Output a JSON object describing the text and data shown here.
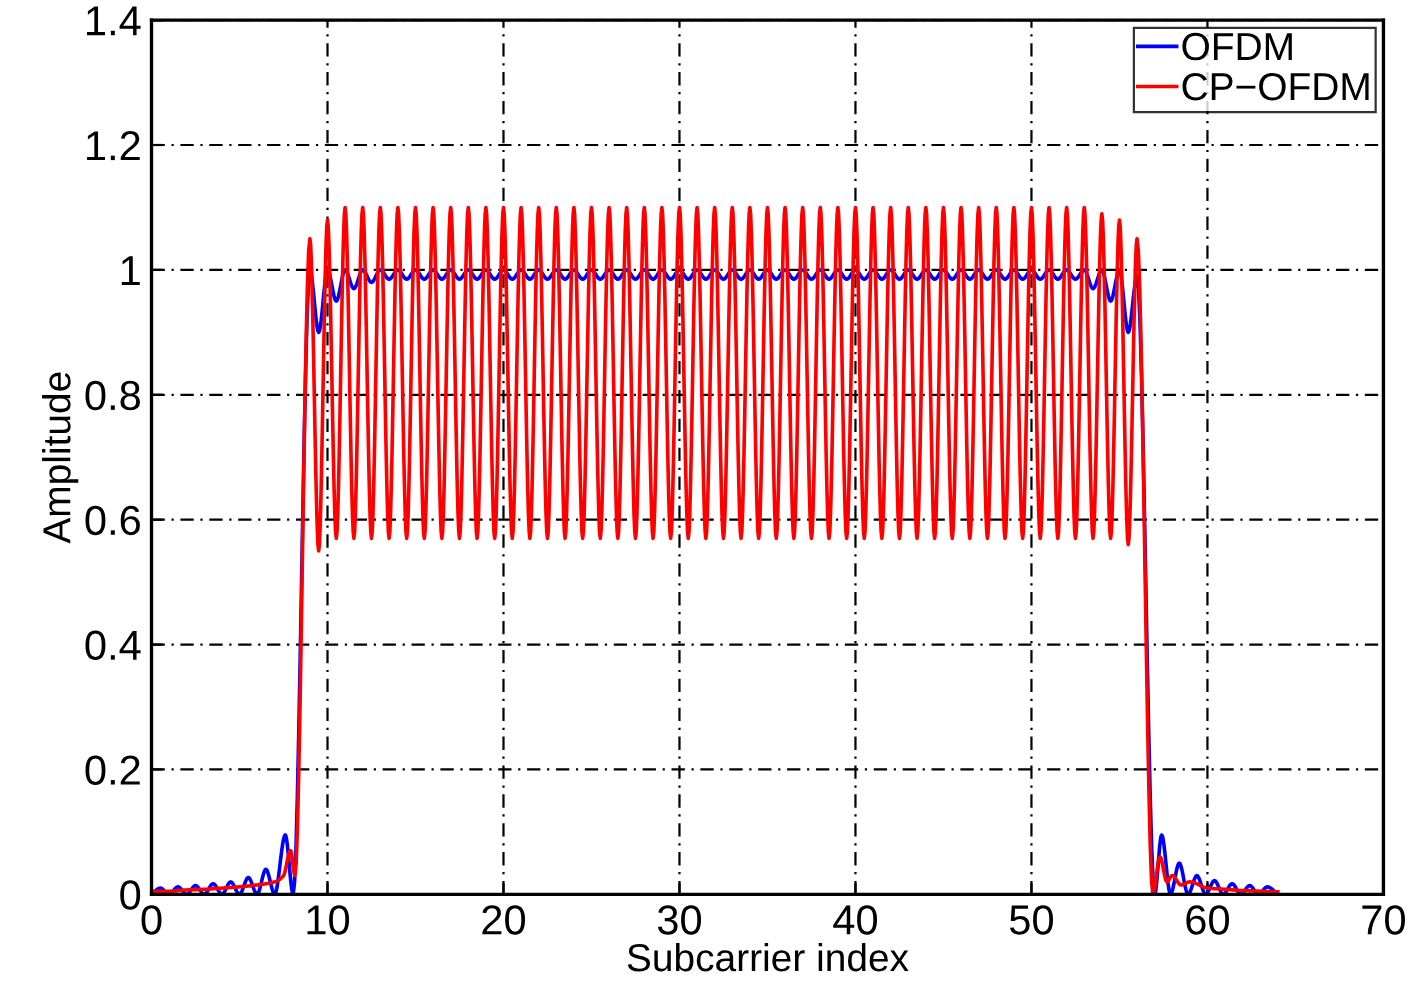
{
  "chart_data": {
    "type": "line",
    "xlabel": "Subcarrier index",
    "ylabel": "Amplitude",
    "xlim": [
      0,
      70
    ],
    "xticks": [
      0,
      10,
      20,
      30,
      40,
      50,
      60,
      70
    ],
    "ylim": [
      0,
      1.4
    ],
    "yticks": [
      0,
      0.2,
      0.4,
      0.6,
      0.8,
      1,
      1.2,
      1.4
    ],
    "grid": true,
    "legend": "top right",
    "line_style": "solid",
    "marker": "none",
    "series": [
      {
        "name": "OFDM",
        "color": "#0000ff",
        "x": [
          0,
          0.5,
          1,
          1.5,
          2,
          2.5,
          3,
          3.5,
          4,
          4.5,
          5,
          5.5,
          6,
          6.5,
          7,
          7.6,
          8.05,
          9,
          9.5,
          10,
          10.5,
          11,
          11.5,
          12,
          12.5,
          13,
          13.5,
          14,
          14.5,
          15,
          15.5,
          16,
          16.5,
          17,
          17.5,
          18,
          18.5,
          19,
          19.5,
          20,
          20.5,
          21,
          21.5,
          22,
          22.5,
          23,
          23.5,
          24,
          24.5,
          25,
          25.5,
          26,
          26.5,
          27,
          27.5,
          28,
          28.5,
          29,
          29.5,
          30,
          30.5,
          31,
          31.5,
          32,
          32.5,
          33,
          33.5,
          34,
          34.5,
          35,
          35.5,
          36,
          36.5,
          37,
          37.5,
          38,
          38.5,
          39,
          39.5,
          40,
          40.5,
          41,
          41.5,
          42,
          42.5,
          43,
          43.5,
          44,
          44.5,
          45,
          45.5,
          46,
          46.5,
          47,
          47.5,
          48,
          48.5,
          49,
          49.5,
          50,
          50.5,
          51,
          51.5,
          52,
          52.5,
          53,
          53.5,
          54,
          54.5,
          55,
          55.5,
          56,
          57,
          57.4,
          57.9,
          58.4,
          58.9,
          59.4,
          59.9,
          60.4,
          60.9,
          61.4,
          61.9,
          62.4,
          62.9,
          63.4,
          64
        ],
        "values": [
          0,
          0.01,
          0,
          0.012,
          0,
          0.014,
          0,
          0.017,
          0,
          0.02,
          0,
          0.027,
          0,
          0.04,
          0,
          0.095,
          0,
          1,
          0.9,
          1,
          0.95,
          1,
          0.97,
          1,
          0.98,
          1,
          0.985,
          1,
          0.985,
          1,
          0.985,
          1,
          0.985,
          1,
          0.985,
          1,
          0.985,
          1,
          0.985,
          1,
          0.985,
          1,
          0.985,
          1,
          0.985,
          1,
          0.985,
          1,
          0.985,
          1,
          0.985,
          1,
          0.985,
          1,
          0.985,
          1,
          0.985,
          1,
          0.985,
          1,
          0.985,
          1,
          0.985,
          1,
          0.985,
          1,
          0.985,
          1,
          0.985,
          1,
          0.985,
          1,
          0.985,
          1,
          0.985,
          1,
          0.985,
          1,
          0.985,
          1,
          0.985,
          1,
          0.985,
          1,
          0.985,
          1,
          0.985,
          1,
          0.985,
          1,
          0.985,
          1,
          0.985,
          1,
          0.985,
          1,
          0.985,
          1,
          0.985,
          1,
          0.985,
          1,
          0.985,
          1,
          0.985,
          1,
          0.97,
          1,
          0.95,
          1,
          0.9,
          0.99,
          0,
          0.095,
          0,
          0.05,
          0,
          0.03,
          0,
          0.022,
          0,
          0.017,
          0,
          0.014,
          0,
          0.012,
          0
        ]
      },
      {
        "name": "CP−OFDM",
        "color": "#ff0000",
        "x": [
          0,
          1,
          2,
          3,
          4,
          5,
          6,
          7,
          7.5,
          7.9,
          8.15,
          9,
          9.5,
          10,
          10.5,
          11,
          11.5,
          12,
          12.5,
          13,
          13.5,
          14,
          14.5,
          15,
          15.5,
          16,
          16.5,
          17,
          17.5,
          18,
          18.5,
          19,
          19.5,
          20,
          20.5,
          21,
          21.5,
          22,
          22.5,
          23,
          23.5,
          24,
          24.5,
          25,
          25.5,
          26,
          26.5,
          27,
          27.5,
          28,
          28.5,
          29,
          29.5,
          30,
          30.5,
          31,
          31.5,
          32,
          32.5,
          33,
          33.5,
          34,
          34.5,
          35,
          35.5,
          36,
          36.5,
          37,
          37.5,
          38,
          38.5,
          39,
          39.5,
          40,
          40.5,
          41,
          41.5,
          42,
          42.5,
          43,
          43.5,
          44,
          44.5,
          45,
          45.5,
          46,
          46.5,
          47,
          47.5,
          48,
          48.5,
          49,
          49.5,
          50,
          50.5,
          51,
          51.5,
          52,
          52.5,
          53,
          53.5,
          54,
          54.5,
          55,
          55.5,
          56,
          56.9,
          57.3,
          57.7,
          58,
          58.5,
          59,
          60,
          61,
          62,
          63,
          64
        ],
        "values": [
          0.005,
          0.005,
          0.007,
          0.008,
          0.01,
          0.012,
          0.015,
          0.02,
          0.03,
          0.07,
          0.03,
          1.05,
          0.55,
          1.08,
          0.57,
          1.1,
          0.57,
          1.1,
          0.57,
          1.1,
          0.57,
          1.1,
          0.57,
          1.1,
          0.57,
          1.1,
          0.57,
          1.1,
          0.57,
          1.1,
          0.57,
          1.1,
          0.57,
          1.1,
          0.57,
          1.1,
          0.57,
          1.1,
          0.57,
          1.1,
          0.57,
          1.1,
          0.57,
          1.1,
          0.57,
          1.1,
          0.57,
          1.1,
          0.57,
          1.1,
          0.57,
          1.1,
          0.57,
          1.1,
          0.57,
          1.1,
          0.57,
          1.1,
          0.57,
          1.1,
          0.57,
          1.1,
          0.57,
          1.1,
          0.57,
          1.1,
          0.57,
          1.1,
          0.57,
          1.1,
          0.57,
          1.1,
          0.57,
          1.1,
          0.57,
          1.1,
          0.57,
          1.1,
          0.57,
          1.1,
          0.57,
          1.1,
          0.57,
          1.1,
          0.57,
          1.1,
          0.57,
          1.1,
          0.57,
          1.1,
          0.57,
          1.1,
          0.57,
          1.1,
          0.57,
          1.1,
          0.57,
          1.1,
          0.57,
          1.1,
          0.57,
          1.09,
          0.57,
          1.08,
          0.56,
          1.05,
          0,
          0.06,
          0.02,
          0.03,
          0.015,
          0.02,
          0.01,
          0.008,
          0.006,
          0.005,
          0.004
        ]
      }
    ]
  }
}
